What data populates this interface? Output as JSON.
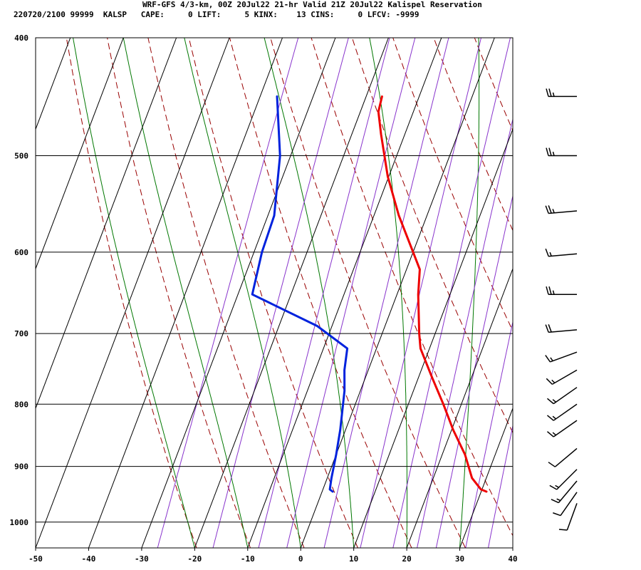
{
  "header": {
    "title": "WRF-GFS 4/3-km, 00Z 20Jul22 21-hr Valid 21Z 20Jul22 Kalispel Reservation",
    "stats": "220720/2100 99999  KALSP   CAPE:     0 LIFT:     5 KINX:    13 CINS:     0 LFCV: -9999"
  },
  "colors": {
    "temperature": "#ee0000",
    "dewpoint": "#0022dd",
    "isobar_isotherm_grid": "#000000",
    "dry_adiabat": "#990000",
    "moist_adiabat": "#007700",
    "mixing_ratio": "#8833cc"
  },
  "chart_data": {
    "type": "skew-t log-p sounding",
    "x_axis": {
      "quantity": "temperature",
      "ticks": [
        "-50",
        "-40",
        "-30",
        "-20",
        "-10",
        "0",
        "10",
        "20",
        "30",
        "40"
      ],
      "range": [
        -50,
        40
      ]
    },
    "y_axis": {
      "quantity": "pressure",
      "scale": "log",
      "ticks": [
        "400",
        "500",
        "600",
        "700",
        "800",
        "900",
        "1000"
      ],
      "range": [
        400,
        1050
      ]
    },
    "series": [
      {
        "role": "temperature",
        "points": [
          {
            "p": 944,
            "t": 31.0
          },
          {
            "p": 940,
            "t": 29.8
          },
          {
            "p": 920,
            "t": 27.3
          },
          {
            "p": 880,
            "t": 24.3
          },
          {
            "p": 840,
            "t": 20.3
          },
          {
            "p": 800,
            "t": 16.6
          },
          {
            "p": 760,
            "t": 12.5
          },
          {
            "p": 720,
            "t": 8.3
          },
          {
            "p": 700,
            "t": 7.0
          },
          {
            "p": 650,
            "t": 4.0
          },
          {
            "p": 620,
            "t": 2.5
          },
          {
            "p": 600,
            "t": 0.0
          },
          {
            "p": 560,
            "t": -5.3
          },
          {
            "p": 520,
            "t": -10.2
          },
          {
            "p": 480,
            "t": -14.5
          },
          {
            "p": 460,
            "t": -16.6
          },
          {
            "p": 447,
            "t": -17.0
          }
        ]
      },
      {
        "role": "dewpoint",
        "points": [
          {
            "p": 944,
            "t": 2.0
          },
          {
            "p": 940,
            "t": 1.3
          },
          {
            "p": 920,
            "t": 0.8
          },
          {
            "p": 880,
            "t": 0.0
          },
          {
            "p": 840,
            "t": -1.0
          },
          {
            "p": 780,
            "t": -3.0
          },
          {
            "p": 750,
            "t": -4.5
          },
          {
            "p": 720,
            "t": -5.5
          },
          {
            "p": 690,
            "t": -12.8
          },
          {
            "p": 650,
            "t": -27.3
          },
          {
            "p": 600,
            "t": -28.5
          },
          {
            "p": 560,
            "t": -28.8
          },
          {
            "p": 500,
            "t": -32.0
          },
          {
            "p": 447,
            "t": -36.8
          }
        ]
      }
    ],
    "winds": [
      {
        "p": 447,
        "dir": 270,
        "kts": 25
      },
      {
        "p": 500,
        "dir": 270,
        "kts": 25
      },
      {
        "p": 555,
        "dir": 265,
        "kts": 25
      },
      {
        "p": 602,
        "dir": 265,
        "kts": 15
      },
      {
        "p": 650,
        "dir": 270,
        "kts": 25
      },
      {
        "p": 695,
        "dir": 265,
        "kts": 20
      },
      {
        "p": 725,
        "dir": 250,
        "kts": 15
      },
      {
        "p": 750,
        "dir": 240,
        "kts": 15
      },
      {
        "p": 775,
        "dir": 235,
        "kts": 15
      },
      {
        "p": 800,
        "dir": 235,
        "kts": 15
      },
      {
        "p": 825,
        "dir": 235,
        "kts": 15
      },
      {
        "p": 870,
        "dir": 230,
        "kts": 10
      },
      {
        "p": 905,
        "dir": 225,
        "kts": 15
      },
      {
        "p": 925,
        "dir": 220,
        "kts": 15
      },
      {
        "p": 945,
        "dir": 215,
        "kts": 10
      },
      {
        "p": 965,
        "dir": 200,
        "kts": 10
      }
    ],
    "background_lines": [
      "isobars",
      "isotherms",
      "dry adiabats",
      "moist adiabats",
      "mixing ratio lines"
    ]
  }
}
